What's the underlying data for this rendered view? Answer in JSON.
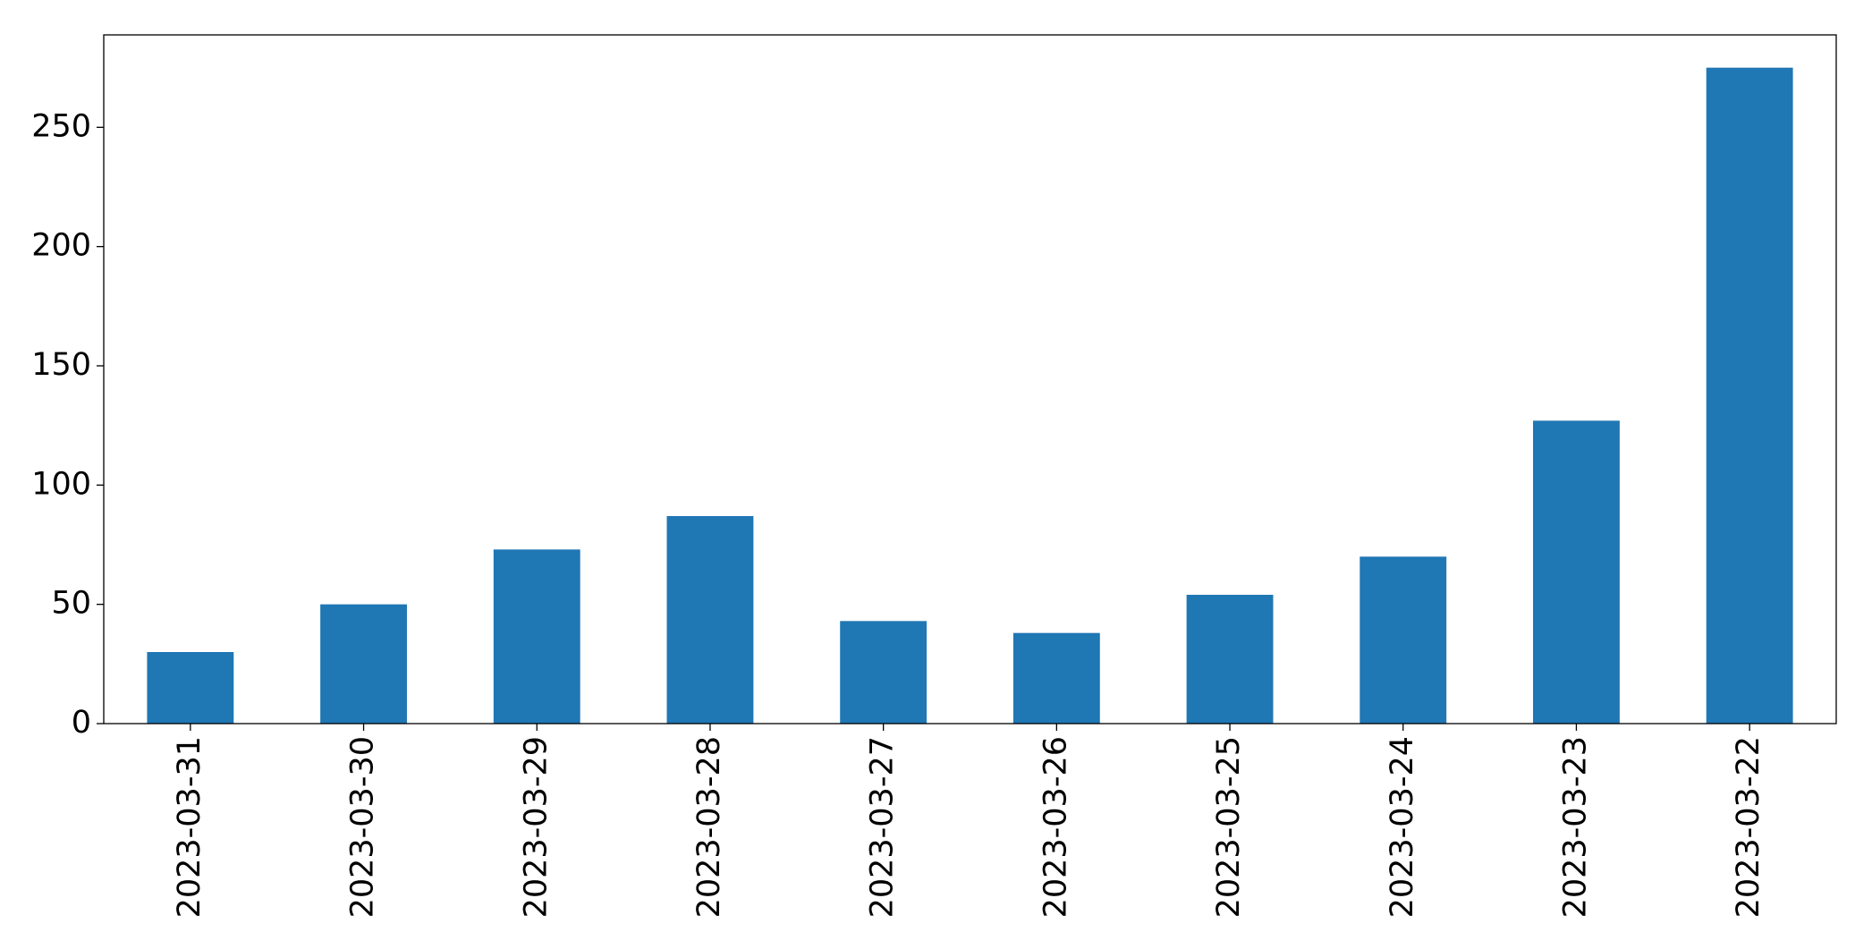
{
  "chart_data": {
    "type": "bar",
    "categories": [
      "2023-03-31",
      "2023-03-30",
      "2023-03-29",
      "2023-03-28",
      "2023-03-27",
      "2023-03-26",
      "2023-03-25",
      "2023-03-24",
      "2023-03-23",
      "2023-03-22"
    ],
    "values": [
      30,
      50,
      73,
      87,
      43,
      38,
      54,
      70,
      127,
      275
    ],
    "color": "#1f77b4",
    "ylim": [
      0,
      288.75
    ],
    "yticks": [
      0,
      50,
      100,
      150,
      200,
      250
    ],
    "grid": false
  }
}
